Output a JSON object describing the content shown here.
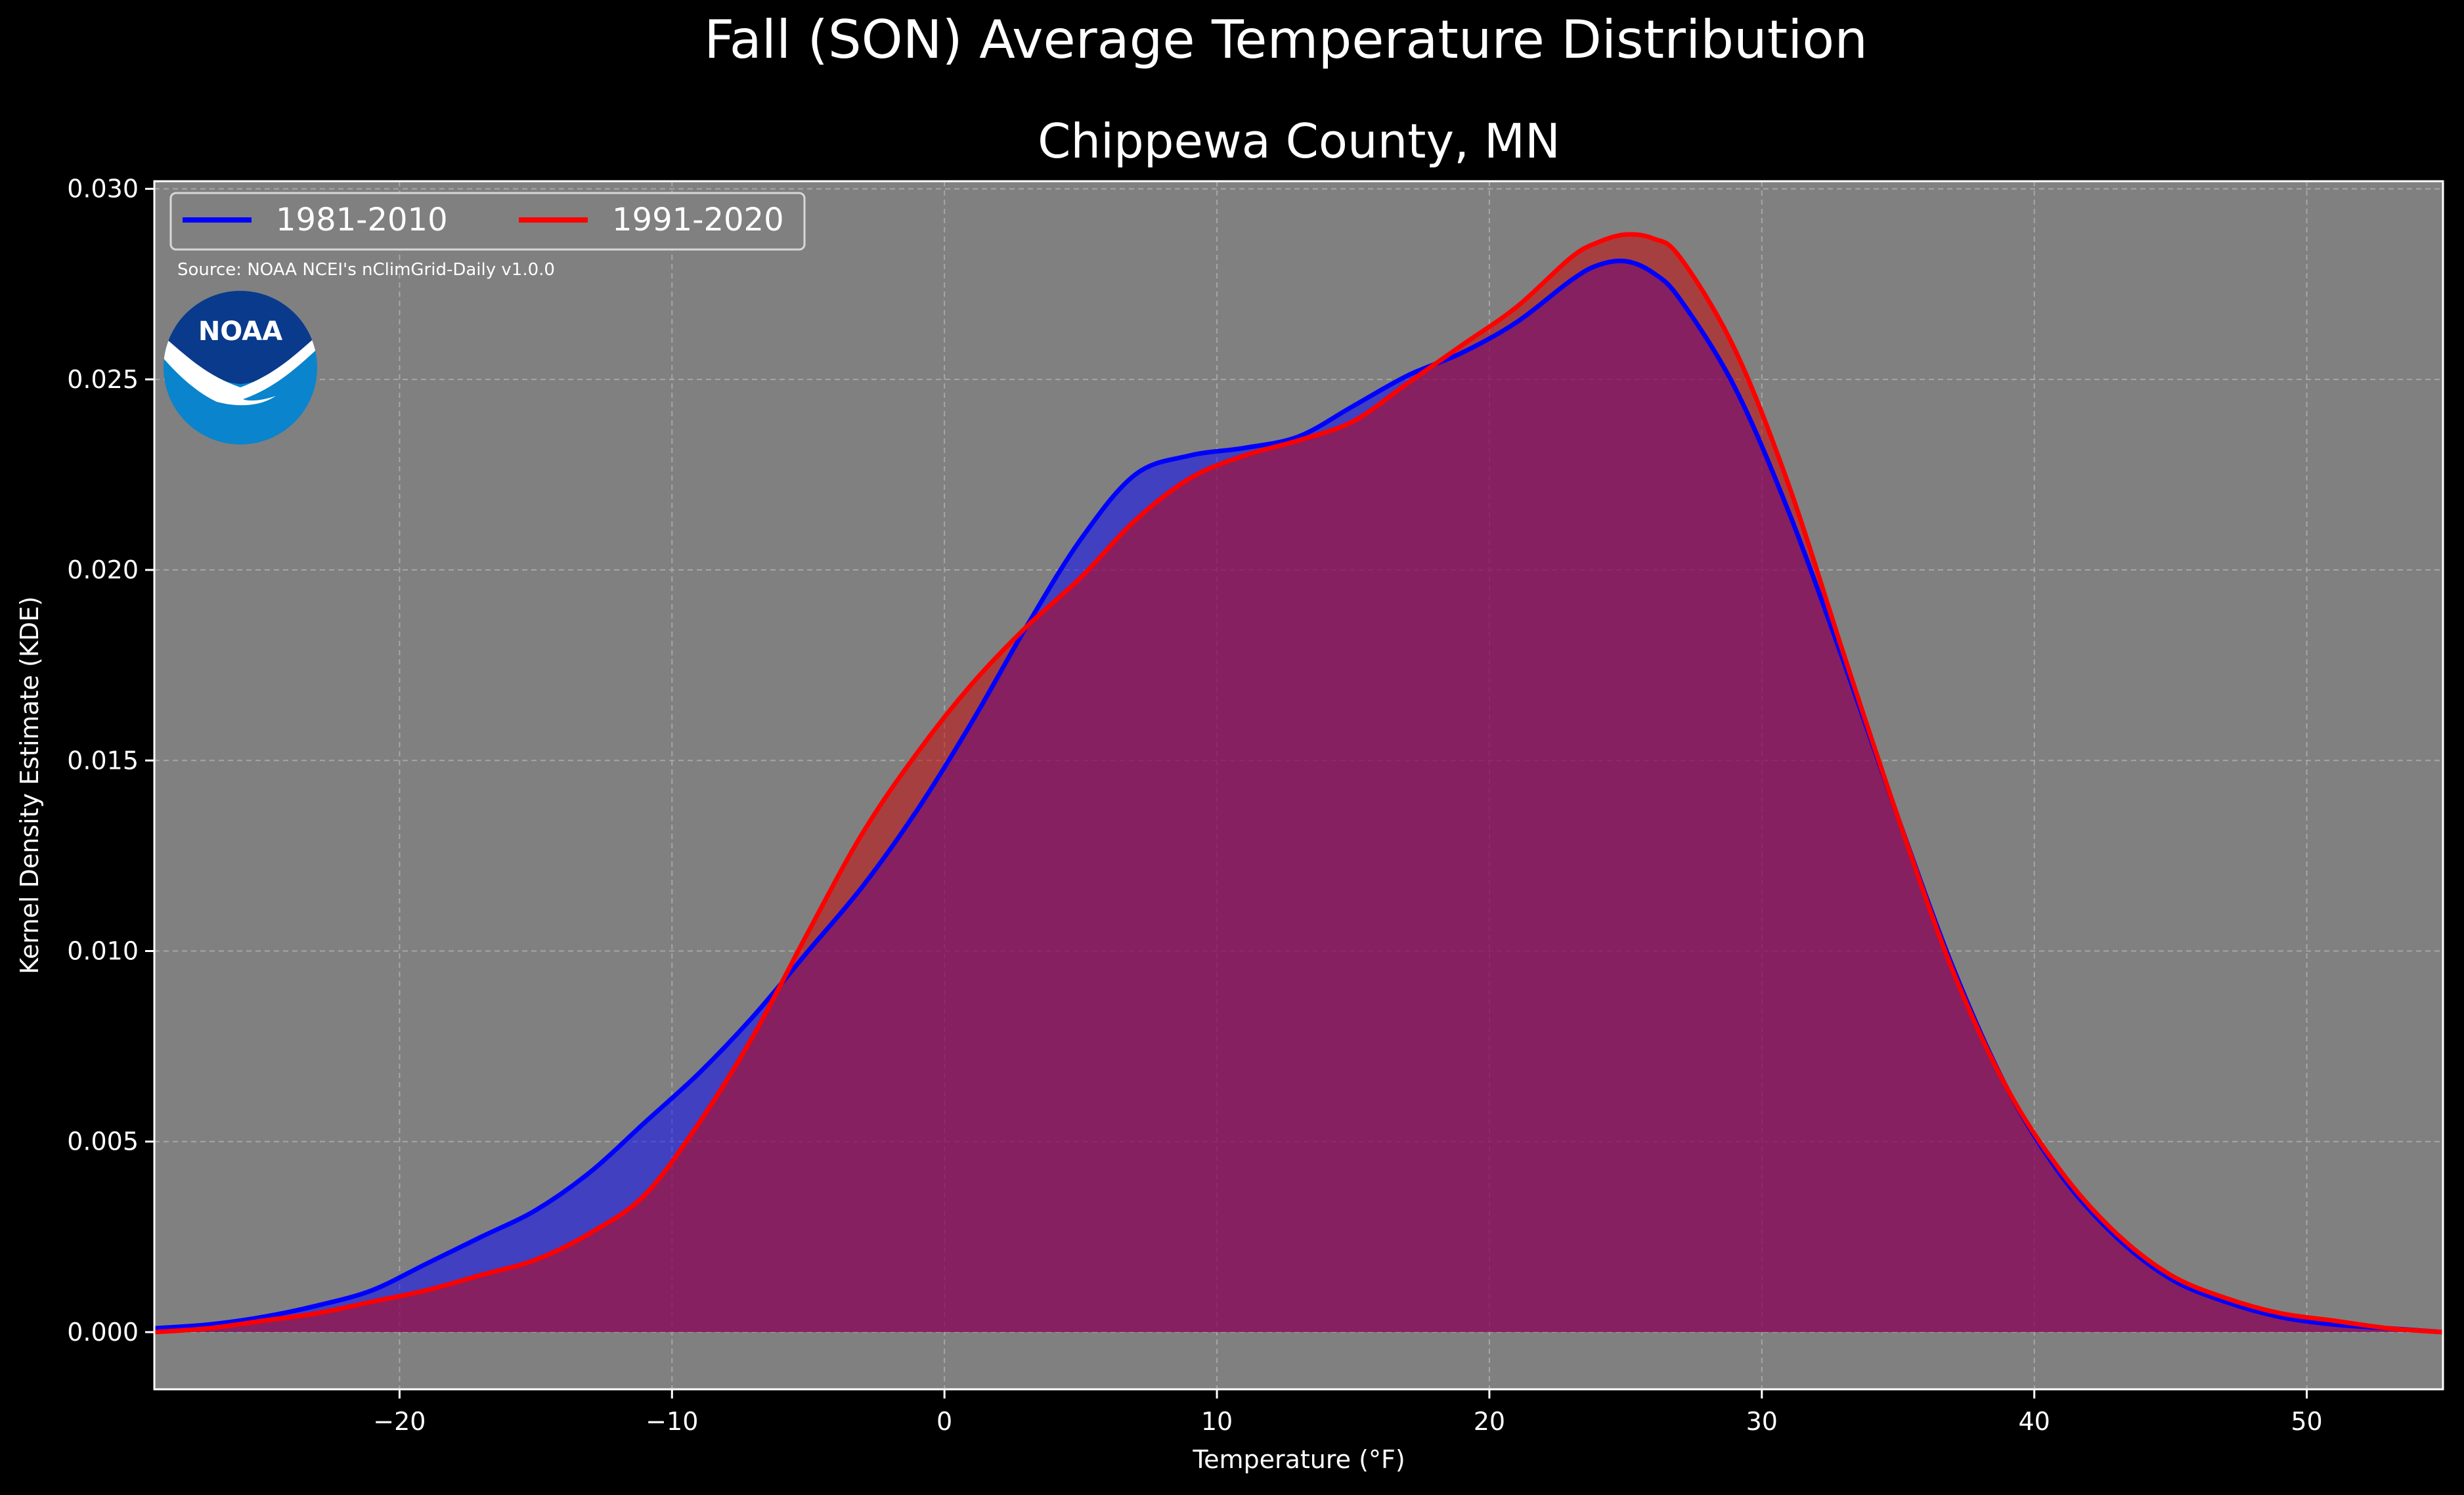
{
  "chart_data": {
    "type": "area",
    "title": "Fall (SON) Average Temperature Distribution",
    "subtitle": "Chippewa County, MN",
    "xlabel": "Temperature (°F)",
    "ylabel": "Kernel Density Estimate (KDE)",
    "xlim": [
      -29,
      55
    ],
    "ylim": [
      -0.0015,
      0.0302
    ],
    "x_ticks": [
      -20,
      -10,
      0,
      10,
      20,
      30,
      40,
      50
    ],
    "x_tick_labels": [
      "−20",
      "−10",
      "0",
      "10",
      "20",
      "30",
      "40",
      "50"
    ],
    "y_ticks": [
      0.0,
      0.005,
      0.01,
      0.015,
      0.02,
      0.025,
      0.03
    ],
    "y_tick_labels": [
      "0.000",
      "0.005",
      "0.010",
      "0.015",
      "0.020",
      "0.025",
      "0.030"
    ],
    "grid": true,
    "legend_position": "top-left",
    "source_note": "Source: NOAA NCEI's nClimGrid-Daily v1.0.0",
    "logo_text": "NOAA",
    "colors": {
      "figure_bg": "#000000",
      "plot_bg": "#808080",
      "grid": "#b0b0b0",
      "text": "#ffffff",
      "logo_dark": "#0a3a8c",
      "logo_light": "#0a84cc"
    },
    "series": [
      {
        "name": "1981-2010",
        "color": "#0000ff",
        "fill": "#0000ff",
        "x": [
          -29,
          -27,
          -25,
          -23,
          -21,
          -19,
          -17,
          -15,
          -13,
          -11,
          -9,
          -7,
          -5,
          -3,
          -1,
          1,
          3,
          5,
          7,
          9,
          11,
          13,
          15,
          17,
          19,
          21,
          23,
          24,
          25,
          26,
          27,
          29,
          31,
          33,
          35,
          37,
          39,
          41,
          43,
          45,
          47,
          49,
          51,
          53,
          55
        ],
        "y": [
          0.0001,
          0.0002,
          0.0004,
          0.0007,
          0.0011,
          0.0018,
          0.0025,
          0.0032,
          0.0042,
          0.0055,
          0.0068,
          0.0083,
          0.01,
          0.0117,
          0.0137,
          0.016,
          0.0185,
          0.0208,
          0.0225,
          0.023,
          0.0232,
          0.0235,
          0.0243,
          0.0251,
          0.0257,
          0.0265,
          0.0276,
          0.028,
          0.0281,
          0.0278,
          0.0271,
          0.0248,
          0.0215,
          0.0176,
          0.0135,
          0.0096,
          0.0064,
          0.0041,
          0.0025,
          0.0014,
          0.0008,
          0.0004,
          0.0002,
          0.0001,
          0.0
        ]
      },
      {
        "name": "1991-2020",
        "color": "#ff0000",
        "fill": "#cc0000",
        "x": [
          -29,
          -27,
          -25,
          -23,
          -21,
          -19,
          -17,
          -15,
          -13,
          -11,
          -9,
          -7,
          -5,
          -3,
          -1,
          1,
          3,
          5,
          7,
          9,
          11,
          13,
          15,
          17,
          19,
          21,
          23,
          24,
          25,
          26,
          27,
          29,
          31,
          33,
          35,
          37,
          39,
          41,
          43,
          45,
          47,
          49,
          51,
          53,
          55
        ],
        "y": [
          0.0,
          0.0001,
          0.0003,
          0.0005,
          0.0008,
          0.0011,
          0.0015,
          0.0019,
          0.0026,
          0.0036,
          0.0055,
          0.0078,
          0.0105,
          0.0131,
          0.0152,
          0.017,
          0.0185,
          0.0198,
          0.0213,
          0.0224,
          0.023,
          0.0234,
          0.0239,
          0.0249,
          0.0259,
          0.0269,
          0.0282,
          0.0286,
          0.0288,
          0.0287,
          0.0282,
          0.0258,
          0.0222,
          0.0178,
          0.0135,
          0.0095,
          0.0064,
          0.0042,
          0.0026,
          0.0015,
          0.0009,
          0.0005,
          0.0003,
          0.0001,
          0.0
        ]
      }
    ]
  }
}
